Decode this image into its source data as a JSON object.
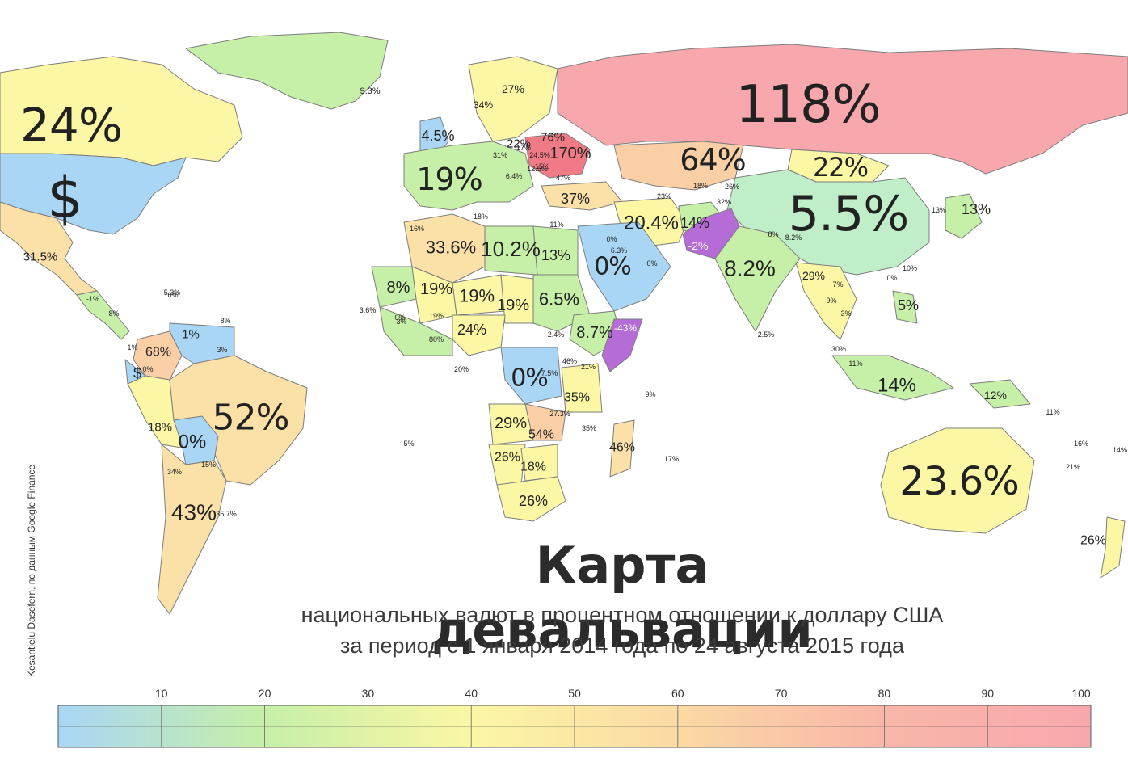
{
  "title": "Карта девальвации",
  "subtitle_line1": "национальных валют в процентном отношении к доллару США",
  "subtitle_line2": "за период с 1 января 2014 года по 24 августа 2015 года",
  "credit": "Kesantielu Dasefern, по данным Google Finance",
  "scale": {
    "ticks": [
      "10",
      "20",
      "30",
      "40",
      "50",
      "60",
      "70",
      "80",
      "90",
      "100"
    ],
    "colors": [
      "#a9d6f5",
      "#c6efa8",
      "#fbf7a4",
      "#fbd9a4",
      "#f9b6a8",
      "#f8a8ad"
    ]
  },
  "colors": {
    "ocean": "#ffffff",
    "usd": "#a9d6f5",
    "low": "#c6efa8",
    "mid": "#fbf7a4",
    "midhigh": "#fbe0a8",
    "high": "#fbcfa6",
    "veryhigh": "#f8a8ad",
    "extreme": "#f07a86",
    "negative": "#b56cd6"
  },
  "regions": [
    {
      "id": "canada",
      "label": "24%"
    },
    {
      "id": "usa",
      "label": "$"
    },
    {
      "id": "mexico",
      "label": "31.5%"
    },
    {
      "id": "greenland",
      "label": ""
    },
    {
      "id": "iceland",
      "label": "9.3%"
    },
    {
      "id": "russia",
      "label": "118%"
    },
    {
      "id": "kazakhstan",
      "label": "64%"
    },
    {
      "id": "mongolia",
      "label": "22%"
    },
    {
      "id": "china",
      "label": "5.5%"
    },
    {
      "id": "india",
      "label": "8.2%"
    },
    {
      "id": "pakistan",
      "label": "-2%"
    },
    {
      "id": "iran",
      "label": "20.4%"
    },
    {
      "id": "afghanistan",
      "label": "14%"
    },
    {
      "id": "saudi",
      "label": "0%"
    },
    {
      "id": "turkey",
      "label": "37%"
    },
    {
      "id": "ukraine",
      "label": "170%"
    },
    {
      "id": "belarus",
      "label": "76%"
    },
    {
      "id": "scandinavia",
      "label": "27%"
    },
    {
      "id": "sweden",
      "label": "34%"
    },
    {
      "id": "europe",
      "label": "19%"
    },
    {
      "id": "uk",
      "label": "4.5%"
    },
    {
      "id": "poland",
      "label": "22%"
    },
    {
      "id": "egypt",
      "label": "13%"
    },
    {
      "id": "libya",
      "label": "10.2%"
    },
    {
      "id": "algeria",
      "label": "33.6%"
    },
    {
      "id": "mauritania",
      "label": "8%"
    },
    {
      "id": "mali",
      "label": "19%"
    },
    {
      "id": "niger",
      "label": "19%"
    },
    {
      "id": "chad",
      "label": "19%"
    },
    {
      "id": "sudan",
      "label": "6.5%"
    },
    {
      "id": "ethiopia",
      "label": "8.7%"
    },
    {
      "id": "somalia",
      "label": "-43%"
    },
    {
      "id": "nigeria",
      "label": "24%"
    },
    {
      "id": "congo",
      "label": "0%"
    },
    {
      "id": "tanzania",
      "label": "35%"
    },
    {
      "id": "angola",
      "label": "29%"
    },
    {
      "id": "zambia",
      "label": "54%"
    },
    {
      "id": "namibia",
      "label": "26%"
    },
    {
      "id": "botswana",
      "label": "18%"
    },
    {
      "id": "southafrica",
      "label": "26%"
    },
    {
      "id": "madagascar",
      "label": "46%"
    },
    {
      "id": "brazil",
      "label": "52%"
    },
    {
      "id": "colombia",
      "label": "68%"
    },
    {
      "id": "venezuela",
      "label": "1%"
    },
    {
      "id": "peru",
      "label": "18%"
    },
    {
      "id": "bolivia",
      "label": "0%"
    },
    {
      "id": "argentina",
      "label": "43%"
    },
    {
      "id": "ecuador",
      "label": "$"
    },
    {
      "id": "seasia",
      "label": "29%"
    },
    {
      "id": "indonesia",
      "label": "14%"
    },
    {
      "id": "png",
      "label": "12%"
    },
    {
      "id": "australia",
      "label": "23.6%"
    },
    {
      "id": "newzealand",
      "label": "26%"
    },
    {
      "id": "japan",
      "label": "13%"
    },
    {
      "id": "philippines",
      "label": "5%"
    }
  ],
  "small_labels": [
    "16%",
    "18%",
    "19%",
    "6.3%",
    "0%",
    "3%",
    "11%",
    "47%",
    "26%",
    "32%",
    "23%",
    "8%",
    "8.2%",
    "2.5%",
    "7%",
    "3%",
    "9%",
    "30%",
    "11%",
    "10%",
    "13%",
    "2.4%",
    "21%",
    "46%",
    "27.3%",
    "35%",
    "7.5%",
    "20%",
    "5%",
    "9%",
    "17%",
    "16%",
    "21%",
    "11%",
    "14%",
    "15%",
    "34%",
    "35.7%",
    "0%",
    "0%",
    "0%",
    "-1%",
    "8%",
    "1%",
    "3.6%",
    "80%",
    "12.5%",
    "6.4%",
    "17%",
    "15%",
    "24.5%",
    "18%",
    "31%",
    "0%",
    "3%",
    "8%",
    "0%",
    "5.3%"
  ]
}
